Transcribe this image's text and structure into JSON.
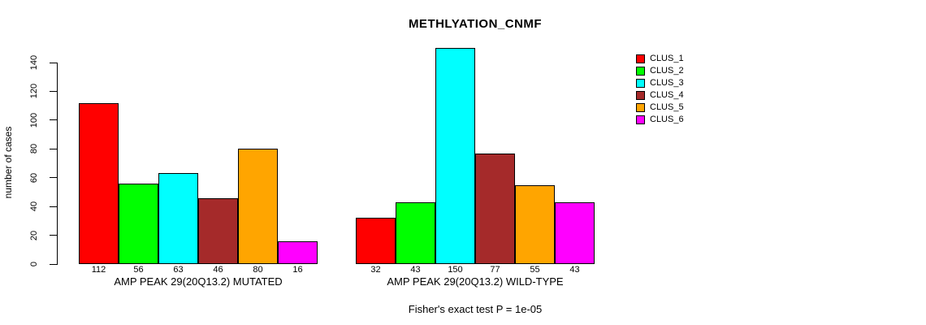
{
  "chart_data": {
    "type": "bar",
    "title": "METHLYATION_CNMF",
    "xlabel": "",
    "ylabel": "number of cases",
    "ylim": [
      0,
      140
    ],
    "yticks": [
      0,
      20,
      40,
      60,
      80,
      100,
      120,
      140
    ],
    "grid": false,
    "legend_position": "right",
    "categories": [
      "CLUS_1",
      "CLUS_2",
      "CLUS_3",
      "CLUS_4",
      "CLUS_5",
      "CLUS_6"
    ],
    "series_colors": [
      "#ff0000",
      "#00ff00",
      "#00ffff",
      "#a52a2a",
      "#ffa500",
      "#ff00ff"
    ],
    "groups": [
      {
        "label": "AMP PEAK 29(20Q13.2) MUTATED",
        "values": [
          112,
          56,
          63,
          46,
          80,
          16
        ]
      },
      {
        "label": "AMP PEAK 29(20Q13.2) WILD-TYPE",
        "values": [
          32,
          43,
          150,
          77,
          55,
          43
        ]
      }
    ],
    "annotation": "Fisher's exact test P = 1e-05"
  },
  "legend": {
    "items": [
      {
        "label": "CLUS_1",
        "color": "#ff0000"
      },
      {
        "label": "CLUS_2",
        "color": "#00ff00"
      },
      {
        "label": "CLUS_3",
        "color": "#00ffff"
      },
      {
        "label": "CLUS_4",
        "color": "#a52a2a"
      },
      {
        "label": "CLUS_5",
        "color": "#ffa500"
      },
      {
        "label": "CLUS_6",
        "color": "#ff00ff"
      }
    ]
  }
}
